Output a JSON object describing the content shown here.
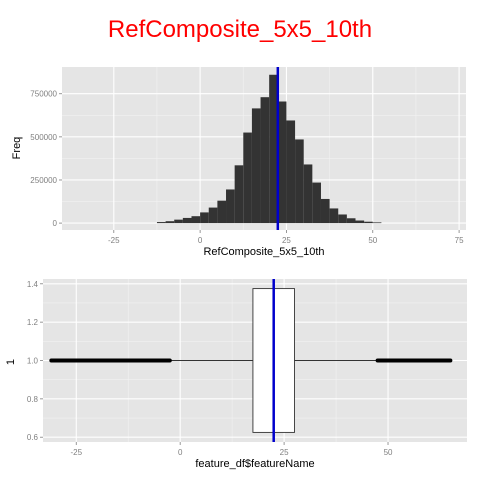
{
  "chart_data": [
    {
      "type": "histogram",
      "title": "RefComposite_5x5_10th",
      "xlabel": "RefComposite_5x5_10th",
      "ylabel": "Freq",
      "xlim": [
        -40,
        77
      ],
      "ylim": [
        -40000,
        905000
      ],
      "x_ticks": [
        -25,
        0,
        25,
        50,
        75
      ],
      "y_ticks": [
        0,
        250000,
        500000,
        750000
      ],
      "bin_width": 2.5,
      "bins": [
        {
          "x0": -12.5,
          "value": 6000
        },
        {
          "x0": -10.0,
          "value": 11000
        },
        {
          "x0": -7.5,
          "value": 20000
        },
        {
          "x0": -5.0,
          "value": 30000
        },
        {
          "x0": -2.5,
          "value": 40000
        },
        {
          "x0": 0.0,
          "value": 62000
        },
        {
          "x0": 2.5,
          "value": 90000
        },
        {
          "x0": 5.0,
          "value": 130000
        },
        {
          "x0": 7.5,
          "value": 195000
        },
        {
          "x0": 10.0,
          "value": 335000
        },
        {
          "x0": 12.5,
          "value": 525000
        },
        {
          "x0": 15.0,
          "value": 665000
        },
        {
          "x0": 17.5,
          "value": 730000
        },
        {
          "x0": 20.0,
          "value": 860000
        },
        {
          "x0": 22.5,
          "value": 705000
        },
        {
          "x0": 25.0,
          "value": 595000
        },
        {
          "x0": 27.5,
          "value": 485000
        },
        {
          "x0": 30.0,
          "value": 340000
        },
        {
          "x0": 32.5,
          "value": 235000
        },
        {
          "x0": 35.0,
          "value": 140000
        },
        {
          "x0": 37.5,
          "value": 85000
        },
        {
          "x0": 40.0,
          "value": 50000
        },
        {
          "x0": 42.5,
          "value": 28000
        },
        {
          "x0": 45.0,
          "value": 15000
        },
        {
          "x0": 47.5,
          "value": 8000
        },
        {
          "x0": 50.0,
          "value": 4000
        }
      ],
      "reference_line": {
        "x": 22.5,
        "color": "#0000cc"
      },
      "colors": {
        "bars": "#333333",
        "panel": "#e5e5e5",
        "grid": "#ffffff",
        "title": "#ff0000"
      }
    },
    {
      "type": "boxplot",
      "xlabel": "feature_df$featureName",
      "ylabel": "1",
      "xlim": [
        -33,
        69
      ],
      "ylim": [
        0.575,
        1.425
      ],
      "x_ticks": [
        -25,
        0,
        25,
        50
      ],
      "y_ticks": [
        0.6,
        0.8,
        1.0,
        1.2,
        1.4
      ],
      "box": {
        "q1": 17.5,
        "median": 22.5,
        "q3": 27.5,
        "whisker_low": -2.5,
        "whisker_high": 47.5,
        "y": 1.0,
        "ymin": 0.625,
        "ymax": 1.375
      },
      "outliers_low": [
        -31,
        -2.5
      ],
      "outliers_high": [
        47.5,
        65
      ],
      "reference_line": {
        "x": 22.5,
        "color": "#0000cc"
      },
      "colors": {
        "box_fill": "#ffffff",
        "box_stroke": "#333333",
        "panel": "#e5e5e5",
        "grid": "#ffffff",
        "points": "#000000"
      }
    }
  ]
}
